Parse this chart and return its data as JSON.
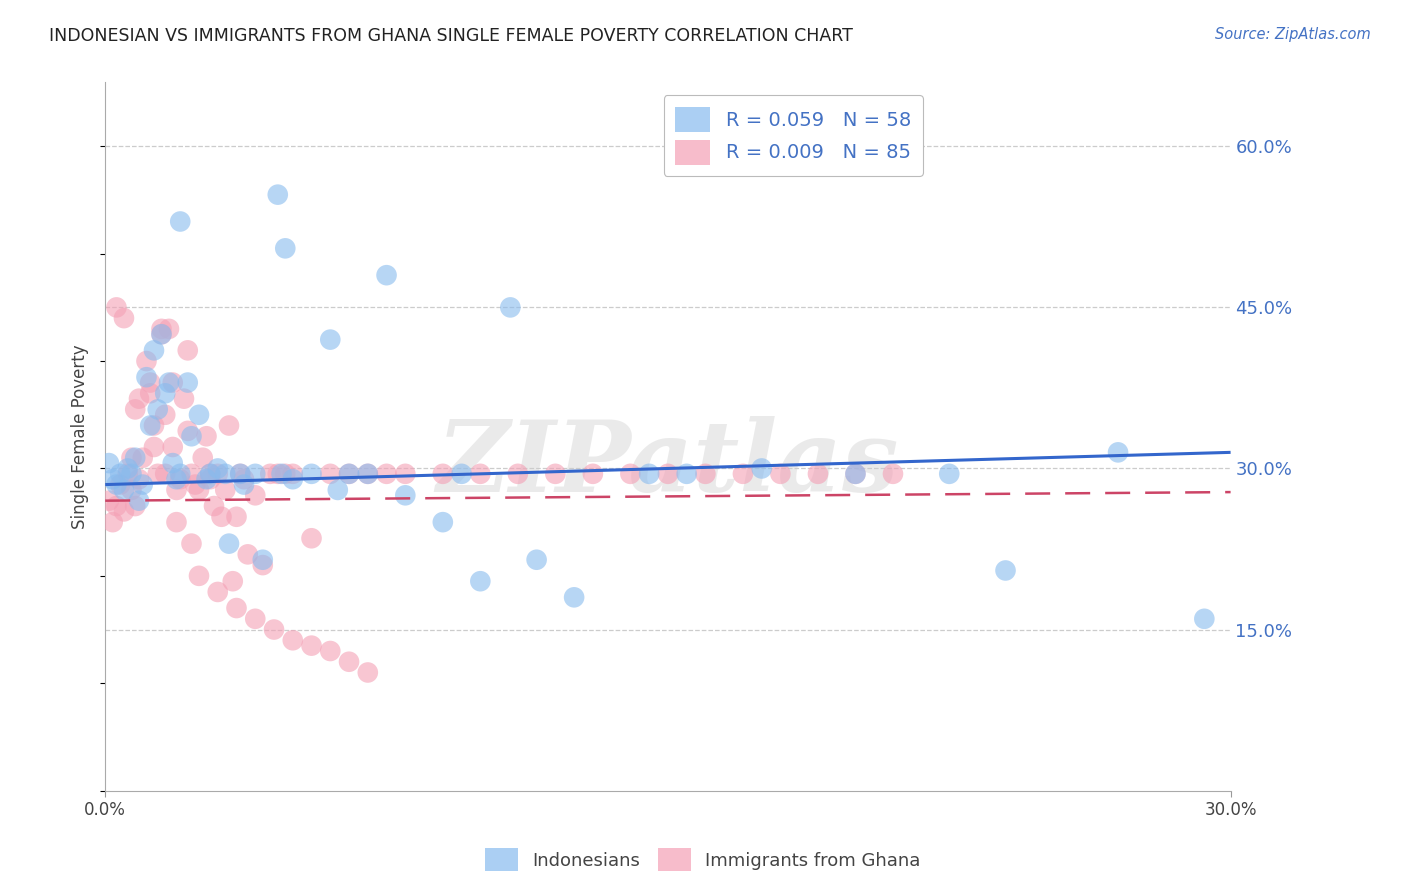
{
  "title": "INDONESIAN VS IMMIGRANTS FROM GHANA SINGLE FEMALE POVERTY CORRELATION CHART",
  "source": "Source: ZipAtlas.com",
  "ylabel": "Single Female Poverty",
  "ytick_labels": [
    "60.0%",
    "45.0%",
    "30.0%",
    "15.0%"
  ],
  "ytick_values": [
    0.6,
    0.45,
    0.3,
    0.15
  ],
  "xlim": [
    0.0,
    0.3
  ],
  "ylim": [
    0.0,
    0.66
  ],
  "indonesian_color": "#88bbee",
  "ghana_color": "#f4a0b5",
  "indonesian_line_color": "#3366cc",
  "ghana_line_color": "#cc4466",
  "watermark": "ZIPatlas",
  "indonesian_line_y0": 0.285,
  "indonesian_line_y1": 0.315,
  "ghana_line_y0": 0.27,
  "ghana_line_y1": 0.278,
  "indo_x": [
    0.001,
    0.002,
    0.003,
    0.004,
    0.005,
    0.006,
    0.007,
    0.008,
    0.009,
    0.01,
    0.011,
    0.012,
    0.013,
    0.014,
    0.015,
    0.016,
    0.017,
    0.018,
    0.019,
    0.02,
    0.022,
    0.023,
    0.025,
    0.027,
    0.028,
    0.03,
    0.032,
    0.033,
    0.036,
    0.037,
    0.04,
    0.042,
    0.048,
    0.055,
    0.06,
    0.062,
    0.065,
    0.07,
    0.08,
    0.09,
    0.095,
    0.1,
    0.115,
    0.125,
    0.145,
    0.155,
    0.175,
    0.2,
    0.225,
    0.24,
    0.27,
    0.293,
    0.05,
    0.108,
    0.046,
    0.075,
    0.02,
    0.047
  ],
  "indo_y": [
    0.305,
    0.29,
    0.285,
    0.295,
    0.28,
    0.3,
    0.295,
    0.31,
    0.27,
    0.285,
    0.385,
    0.34,
    0.41,
    0.355,
    0.425,
    0.37,
    0.38,
    0.305,
    0.29,
    0.295,
    0.38,
    0.33,
    0.35,
    0.29,
    0.295,
    0.3,
    0.295,
    0.23,
    0.295,
    0.285,
    0.295,
    0.215,
    0.505,
    0.295,
    0.42,
    0.28,
    0.295,
    0.295,
    0.275,
    0.25,
    0.295,
    0.195,
    0.215,
    0.18,
    0.295,
    0.295,
    0.3,
    0.295,
    0.295,
    0.205,
    0.315,
    0.16,
    0.29,
    0.45,
    0.555,
    0.48,
    0.53,
    0.295
  ],
  "ghana_x": [
    0.001,
    0.002,
    0.003,
    0.004,
    0.005,
    0.006,
    0.007,
    0.008,
    0.009,
    0.01,
    0.011,
    0.012,
    0.013,
    0.014,
    0.015,
    0.016,
    0.017,
    0.018,
    0.019,
    0.02,
    0.021,
    0.022,
    0.023,
    0.024,
    0.025,
    0.026,
    0.027,
    0.028,
    0.029,
    0.03,
    0.031,
    0.032,
    0.033,
    0.034,
    0.035,
    0.036,
    0.037,
    0.038,
    0.04,
    0.042,
    0.044,
    0.046,
    0.048,
    0.05,
    0.055,
    0.06,
    0.065,
    0.07,
    0.075,
    0.08,
    0.09,
    0.1,
    0.11,
    0.12,
    0.13,
    0.14,
    0.15,
    0.16,
    0.17,
    0.18,
    0.19,
    0.2,
    0.21,
    0.018,
    0.012,
    0.008,
    0.015,
    0.022,
    0.028,
    0.005,
    0.003,
    0.009,
    0.013,
    0.007,
    0.016,
    0.019,
    0.023,
    0.025,
    0.03,
    0.035,
    0.04,
    0.045,
    0.05,
    0.055,
    0.06,
    0.065,
    0.07
  ],
  "ghana_y": [
    0.27,
    0.25,
    0.265,
    0.285,
    0.26,
    0.295,
    0.28,
    0.265,
    0.29,
    0.31,
    0.4,
    0.38,
    0.34,
    0.295,
    0.43,
    0.35,
    0.43,
    0.32,
    0.28,
    0.29,
    0.365,
    0.335,
    0.295,
    0.285,
    0.28,
    0.31,
    0.33,
    0.29,
    0.265,
    0.295,
    0.255,
    0.28,
    0.34,
    0.195,
    0.255,
    0.295,
    0.29,
    0.22,
    0.275,
    0.21,
    0.295,
    0.295,
    0.295,
    0.295,
    0.235,
    0.295,
    0.295,
    0.295,
    0.295,
    0.295,
    0.295,
    0.295,
    0.295,
    0.295,
    0.295,
    0.295,
    0.295,
    0.295,
    0.295,
    0.295,
    0.295,
    0.295,
    0.295,
    0.38,
    0.37,
    0.355,
    0.425,
    0.41,
    0.295,
    0.44,
    0.45,
    0.365,
    0.32,
    0.31,
    0.295,
    0.25,
    0.23,
    0.2,
    0.185,
    0.17,
    0.16,
    0.15,
    0.14,
    0.135,
    0.13,
    0.12,
    0.11
  ]
}
